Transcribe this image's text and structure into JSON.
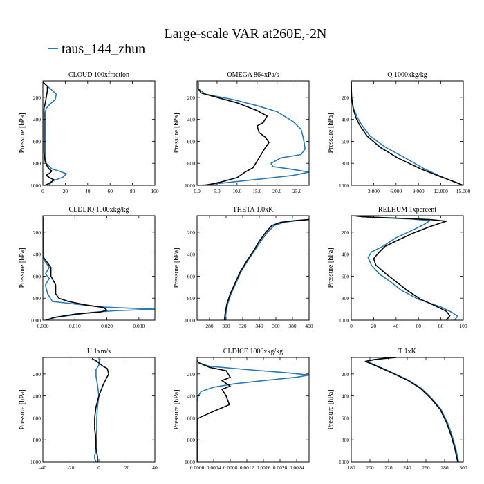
{
  "figure": {
    "title": "Large-scale VAR at260E,-2N",
    "legend_label": "taus_144_zhun",
    "legend_color": "#2878b5",
    "reference_color": "#000000",
    "ylabel": "Pressure [hPa]"
  },
  "chart_data": [
    {
      "type": "line",
      "title": "CLOUD  100xfraction",
      "xlim": [
        0,
        100
      ],
      "xticks": [
        0,
        20,
        40,
        60,
        80,
        100
      ],
      "xtick_labels": [
        "0",
        "20",
        "40",
        "60",
        "80",
        "100"
      ],
      "ylim": [
        1000,
        50
      ],
      "yticks": [
        200,
        400,
        600,
        800,
        1000
      ],
      "ylabel": "Pressure [hPa]",
      "series": [
        {
          "name": "taus_144_zhun",
          "color": "#2878b5",
          "x": [
            0,
            2,
            6,
            12,
            11,
            6,
            3,
            2,
            2,
            2,
            2,
            2,
            2,
            2,
            3,
            5,
            8,
            14,
            21,
            18,
            9,
            5
          ],
          "y": [
            60,
            80,
            115,
            170,
            220,
            265,
            300,
            340,
            400,
            500,
            600,
            650,
            700,
            750,
            800,
            820,
            850,
            870,
            895,
            925,
            960,
            1000
          ]
        },
        {
          "name": "",
          "color": "#000000",
          "x": [
            0,
            2,
            4,
            4,
            3,
            2,
            1,
            1,
            1,
            1,
            1,
            1,
            2,
            4,
            6,
            8,
            6,
            3,
            6,
            10,
            8,
            5,
            2
          ],
          "y": [
            60,
            80,
            100,
            140,
            200,
            260,
            300,
            350,
            400,
            500,
            600,
            700,
            780,
            830,
            855,
            870,
            890,
            910,
            930,
            950,
            965,
            985,
            1000
          ]
        }
      ]
    },
    {
      "type": "line",
      "title": "OMEGA  864xPa/s",
      "xlim": [
        0,
        28
      ],
      "xticks": [
        0,
        5,
        10,
        15,
        20,
        25
      ],
      "xtick_labels": [
        "0.0",
        "5.0",
        "10.0",
        "15.0",
        "20.0",
        "25.0"
      ],
      "ylim": [
        1000,
        50
      ],
      "yticks": [
        200,
        400,
        600,
        800,
        1000
      ],
      "ylabel": "Pressure [hPa]",
      "series": [
        {
          "name": "taus_144_zhun",
          "color": "#2878b5",
          "x": [
            0.3,
            0.3,
            2,
            9,
            15,
            20,
            24,
            26,
            26.5,
            26.8,
            27,
            26,
            21,
            18.5,
            19,
            23,
            28,
            24,
            14,
            5,
            1
          ],
          "y": [
            60,
            120,
            170,
            220,
            275,
            330,
            420,
            490,
            560,
            620,
            670,
            720,
            750,
            800,
            830,
            850,
            880,
            910,
            950,
            985,
            1000
          ]
        },
        {
          "name": "",
          "color": "#000000",
          "x": [
            0.3,
            0.3,
            1,
            4,
            10,
            15,
            17.5,
            16.5,
            15,
            15.5,
            17,
            18,
            17,
            16,
            15,
            14,
            13,
            12,
            10,
            6,
            2
          ],
          "y": [
            60,
            120,
            160,
            190,
            250,
            320,
            370,
            430,
            460,
            520,
            560,
            610,
            660,
            720,
            780,
            840,
            860,
            880,
            930,
            970,
            1000
          ]
        }
      ]
    },
    {
      "type": "line",
      "title": "Q  1000xkg/kg",
      "xlim": [
        0,
        15
      ],
      "xticks": [
        3,
        6,
        9,
        12,
        15
      ],
      "xtick_labels": [
        "3.000",
        "6.000",
        "9.000",
        "12.000",
        "15.000"
      ],
      "ylim": [
        1000,
        50
      ],
      "yticks": [
        200,
        400,
        600,
        800,
        1000
      ],
      "ylabel": "Pressure [hPa]",
      "series": [
        {
          "name": "taus_144_zhun",
          "color": "#2878b5",
          "x": [
            0,
            0.01,
            0.05,
            0.3,
            0.8,
            1.4,
            2.5,
            4.5,
            7.2,
            9.8,
            12,
            13.8,
            15
          ],
          "y": [
            60,
            120,
            200,
            300,
            380,
            450,
            550,
            650,
            750,
            850,
            920,
            970,
            1000
          ]
        },
        {
          "name": "",
          "color": "#000000",
          "x": [
            0,
            0.01,
            0.05,
            0.25,
            0.6,
            1.1,
            2.1,
            3.8,
            6.2,
            9.3,
            11.9,
            13.9,
            15
          ],
          "y": [
            60,
            120,
            200,
            300,
            380,
            450,
            550,
            650,
            750,
            850,
            920,
            970,
            1000
          ]
        }
      ]
    },
    {
      "type": "line",
      "title": "CLDLIQ  1000xkg/kg",
      "xlim": [
        0,
        0.035
      ],
      "xticks": [
        0,
        0.01,
        0.02,
        0.03
      ],
      "xtick_labels": [
        "0.000",
        "0.010",
        "0.020",
        "0.030"
      ],
      "ylim": [
        1000,
        50
      ],
      "yticks": [
        200,
        400,
        600,
        800,
        1000
      ],
      "ylabel": "Pressure [hPa]",
      "series": [
        {
          "name": "taus_144_zhun",
          "color": "#2878b5",
          "x": [
            0,
            0,
            0.0005,
            0.002,
            0.0008,
            0.002,
            0.0008,
            0.0015,
            0.003,
            0.018,
            0.035,
            0.022,
            0.015,
            0.01,
            0.004,
            0.001
          ],
          "y": [
            60,
            420,
            460,
            520,
            580,
            620,
            680,
            760,
            830,
            880,
            900,
            915,
            930,
            950,
            975,
            1000
          ]
        },
        {
          "name": "",
          "color": "#000000",
          "x": [
            0,
            0,
            0.001,
            0.0025,
            0.0025,
            0.004,
            0.004,
            0.005,
            0.008,
            0.013,
            0.019,
            0.02,
            0.018,
            0.01,
            0.0035,
            0.001
          ],
          "y": [
            60,
            420,
            460,
            520,
            600,
            680,
            760,
            800,
            830,
            860,
            885,
            910,
            925,
            945,
            975,
            1000
          ]
        }
      ]
    },
    {
      "type": "line",
      "title": "THETA  1.0xK",
      "xlim": [
        265,
        400
      ],
      "xticks": [
        280,
        300,
        320,
        340,
        360,
        380,
        400
      ],
      "xtick_labels": [
        "280",
        "300",
        "320",
        "340",
        "360",
        "380",
        "400"
      ],
      "ylim": [
        1000,
        50
      ],
      "yticks": [
        200,
        400,
        600,
        800,
        1000
      ],
      "ylabel": "Pressure [hPa]",
      "series": [
        {
          "name": "taus_144_zhun",
          "color": "#2878b5",
          "x": [
            400,
            385,
            370,
            358,
            350,
            342,
            334,
            326,
            318,
            312,
            306,
            302,
            300,
            299
          ],
          "y": [
            85,
            95,
            110,
            140,
            200,
            280,
            370,
            460,
            560,
            660,
            760,
            850,
            930,
            1000
          ]
        },
        {
          "name": "",
          "color": "#000000",
          "x": [
            400,
            382,
            366,
            355,
            348,
            340,
            333,
            325,
            317,
            311,
            305,
            301,
            299,
            298
          ],
          "y": [
            85,
            95,
            110,
            140,
            200,
            280,
            370,
            460,
            560,
            660,
            760,
            850,
            930,
            1000
          ]
        }
      ]
    },
    {
      "type": "line",
      "title": "RELHUM  1xpercent",
      "xlim": [
        0,
        100
      ],
      "xticks": [
        0,
        20,
        40,
        60,
        80,
        100
      ],
      "xtick_labels": [
        "0",
        "20",
        "40",
        "60",
        "80",
        "100"
      ],
      "ylim": [
        1000,
        50
      ],
      "yticks": [
        200,
        400,
        600,
        800,
        1000
      ],
      "ylabel": "Pressure [hPa]",
      "series": [
        {
          "name": "taus_144_zhun",
          "color": "#2878b5",
          "x": [
            2,
            10,
            30,
            55,
            70,
            65,
            55,
            40,
            28,
            18,
            15,
            18,
            25,
            35,
            45,
            60,
            80,
            90,
            95,
            92
          ],
          "y": [
            50,
            60,
            70,
            80,
            95,
            130,
            180,
            250,
            330,
            380,
            430,
            500,
            580,
            650,
            730,
            810,
            880,
            930,
            965,
            1000
          ]
        },
        {
          "name": "",
          "color": "#000000",
          "x": [
            2,
            10,
            40,
            70,
            85,
            70,
            55,
            40,
            30,
            25,
            20,
            22,
            30,
            40,
            50,
            62,
            75,
            85,
            88,
            85
          ],
          "y": [
            50,
            60,
            72,
            85,
            100,
            150,
            210,
            280,
            330,
            380,
            440,
            500,
            570,
            650,
            730,
            810,
            870,
            920,
            960,
            1000
          ]
        }
      ]
    },
    {
      "type": "line",
      "title": "U  1xm/s",
      "xlim": [
        -40,
        40
      ],
      "xticks": [
        -40,
        -20,
        0,
        20,
        40
      ],
      "xtick_labels": [
        "-40",
        "-20",
        "0",
        "20",
        "40"
      ],
      "ylim": [
        1000,
        50
      ],
      "yticks": [
        200,
        400,
        600,
        800,
        1000
      ],
      "ylabel": "Pressure [hPa]",
      "series": [
        {
          "name": "taus_144_zhun",
          "color": "#2878b5",
          "x": [
            1,
            0,
            0,
            -2,
            -2,
            -1,
            0,
            -1,
            -1.5,
            -1.5,
            -2,
            -2,
            -2,
            -3,
            -3,
            -2
          ],
          "y": [
            60,
            90,
            120,
            160,
            220,
            300,
            400,
            500,
            600,
            700,
            800,
            850,
            900,
            940,
            970,
            1000
          ]
        },
        {
          "name": "",
          "color": "#000000",
          "x": [
            -5,
            -2,
            0,
            3,
            6,
            7,
            5,
            3,
            0,
            -2,
            -3,
            -3,
            -2,
            -2,
            -1,
            -1
          ],
          "y": [
            60,
            80,
            100,
            130,
            150,
            200,
            250,
            300,
            400,
            500,
            600,
            700,
            800,
            880,
            950,
            1000
          ]
        }
      ]
    },
    {
      "type": "line",
      "title": "CLDICE  1000xkg/kg",
      "xlim": [
        0,
        0.0027
      ],
      "xticks": [
        0,
        0.0004,
        0.0008,
        0.0012,
        0.0016,
        0.002,
        0.0024
      ],
      "xtick_labels": [
        "0.0000",
        "0.0004",
        "0.0008",
        "0.0012",
        "0.0016",
        "0.0020",
        "0.0024"
      ],
      "ylim": [
        1000,
        50
      ],
      "yticks": [
        200,
        400,
        600,
        800,
        1000
      ],
      "ylabel": "Pressure [hPa]",
      "series": [
        {
          "name": "taus_144_zhun",
          "color": "#2878b5",
          "x": [
            0,
            5e-05,
            0.0003,
            0.0012,
            0.0022,
            0.0027,
            0.0024,
            0.0016,
            0.0009,
            0.0004,
            0.0001,
            3e-05,
            0,
            0
          ],
          "y": [
            80,
            100,
            130,
            160,
            190,
            210,
            230,
            260,
            290,
            320,
            360,
            400,
            450,
            1000
          ]
        },
        {
          "name": "",
          "color": "#000000",
          "x": [
            0,
            5e-05,
            0.0003,
            0.0007,
            0.0008,
            0.0006,
            0.0008,
            0.0006,
            0.0007,
            0.00078,
            0.0004,
            0.0001,
            0,
            0
          ],
          "y": [
            80,
            100,
            140,
            170,
            230,
            260,
            310,
            340,
            400,
            480,
            540,
            590,
            610,
            1000
          ]
        }
      ]
    },
    {
      "type": "line",
      "title": "T  1xK",
      "xlim": [
        180,
        300
      ],
      "xticks": [
        180,
        200,
        220,
        240,
        260,
        280,
        300
      ],
      "xtick_labels": [
        "180",
        "200",
        "220",
        "240",
        "260",
        "280",
        "300"
      ],
      "ylim": [
        1000,
        50
      ],
      "yticks": [
        200,
        400,
        600,
        800,
        1000
      ],
      "ylabel": "Pressure [hPa]",
      "series": [
        {
          "name": "taus_144_zhun",
          "color": "#2878b5",
          "x": [
            228,
            215,
            205,
            197,
            203,
            214,
            227,
            242,
            255,
            266,
            276,
            283,
            288,
            292,
            295
          ],
          "y": [
            50,
            60,
            70,
            85,
            110,
            150,
            200,
            260,
            330,
            420,
            520,
            640,
            760,
            880,
            1000
          ]
        },
        {
          "name": "",
          "color": "#000000",
          "x": [
            228,
            214,
            204,
            195,
            202,
            213,
            226,
            241,
            254,
            265,
            275,
            282,
            287,
            291,
            294
          ],
          "y": [
            50,
            60,
            70,
            85,
            110,
            150,
            200,
            260,
            330,
            420,
            520,
            640,
            760,
            880,
            1000
          ]
        }
      ]
    }
  ]
}
